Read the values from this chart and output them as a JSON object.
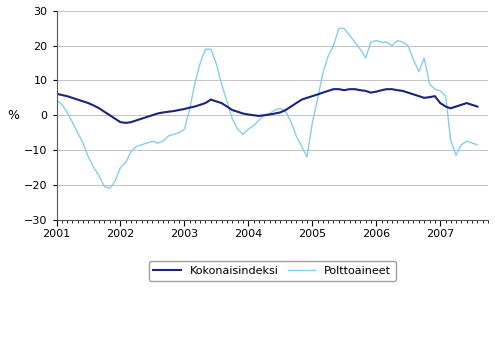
{
  "title": "",
  "ylabel": "%",
  "ylim": [
    -30,
    30
  ],
  "yticks": [
    -30,
    -20,
    -10,
    0,
    10,
    20,
    30
  ],
  "color_kokonaisindeksi": "#1A237E",
  "color_polttoaineet": "#87CEEB",
  "legend_labels": [
    "Kokonaisindeksi",
    "Polttoaineet"
  ],
  "kokonaisindeksi": [
    6.2,
    5.8,
    5.5,
    5.0,
    4.5,
    4.0,
    3.5,
    2.8,
    2.0,
    1.0,
    0.0,
    -1.0,
    -2.0,
    -2.2,
    -2.0,
    -1.5,
    -1.0,
    -0.5,
    0.0,
    0.5,
    0.8,
    1.0,
    1.2,
    1.5,
    1.8,
    2.2,
    2.5,
    3.0,
    3.5,
    4.5,
    4.0,
    3.5,
    2.5,
    1.5,
    1.0,
    0.5,
    0.2,
    0.0,
    -0.2,
    0.0,
    0.2,
    0.5,
    0.8,
    1.5,
    2.5,
    3.5,
    4.5,
    5.0,
    5.5,
    6.0,
    6.5,
    7.0,
    7.5,
    7.5,
    7.2,
    7.5,
    7.5,
    7.2,
    7.0,
    6.5,
    6.8,
    7.2,
    7.5,
    7.5,
    7.2,
    7.0,
    6.5,
    6.0,
    5.5,
    5.0,
    5.2,
    5.5,
    3.5,
    2.5,
    2.0,
    2.5,
    3.0,
    3.5,
    3.0,
    2.5
  ],
  "polttoaineet": [
    4.5,
    3.0,
    1.0,
    -2.0,
    -5.0,
    -8.0,
    -12.0,
    -15.0,
    -17.5,
    -20.5,
    -21.0,
    -19.0,
    -15.0,
    -13.5,
    -10.5,
    -9.0,
    -8.5,
    -8.0,
    -7.5,
    -8.0,
    -7.5,
    -6.0,
    -5.5,
    -5.0,
    -4.0,
    2.0,
    9.0,
    15.0,
    19.0,
    19.0,
    15.0,
    9.0,
    4.0,
    -1.0,
    -4.0,
    -5.5,
    -4.0,
    -3.0,
    -1.5,
    0.0,
    0.5,
    1.5,
    2.0,
    1.0,
    -2.0,
    -6.0,
    -9.0,
    -12.0,
    -2.0,
    5.0,
    12.0,
    17.0,
    20.0,
    25.0,
    25.0,
    23.0,
    21.0,
    19.0,
    16.5,
    21.0,
    21.5,
    21.0,
    21.0,
    20.0,
    21.5,
    21.0,
    20.0,
    16.0,
    12.5,
    16.5,
    9.0,
    7.5,
    7.0,
    5.5,
    -7.0,
    -11.5,
    -8.5,
    -7.5,
    -8.0,
    -8.5
  ]
}
